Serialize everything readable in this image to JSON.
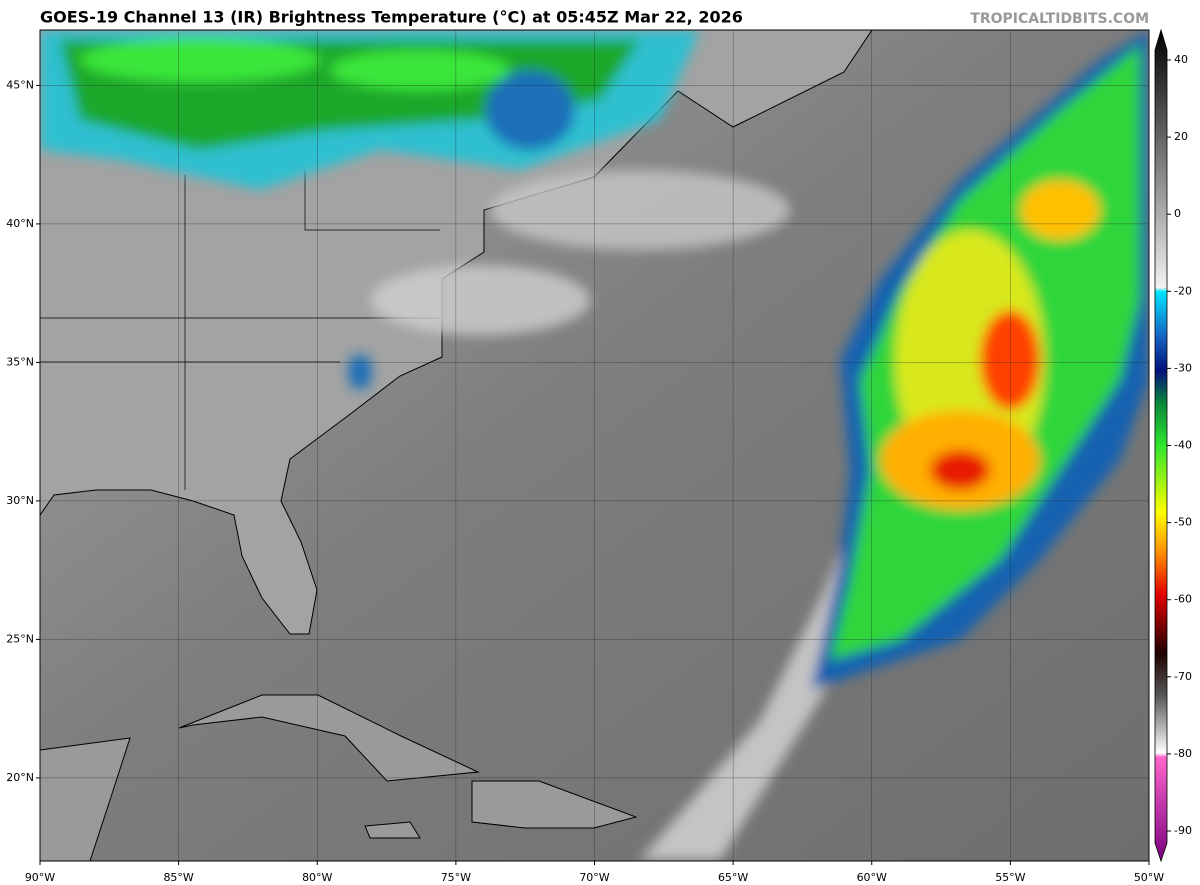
{
  "header": {
    "title": "GOES-19 Channel 13 (IR) Brightness Temperature (°C) at 05:45Z Mar 22, 2026",
    "credit": "TROPICALTIDBITS.COM"
  },
  "map": {
    "lonlim": [
      -90,
      -50
    ],
    "latlim": [
      17,
      47
    ],
    "lon_ticks": [
      {
        "value": -90,
        "label": "90°W"
      },
      {
        "value": -85,
        "label": "85°W"
      },
      {
        "value": -80,
        "label": "80°W"
      },
      {
        "value": -75,
        "label": "75°W"
      },
      {
        "value": -70,
        "label": "70°W"
      },
      {
        "value": -65,
        "label": "65°W"
      },
      {
        "value": -60,
        "label": "60°W"
      },
      {
        "value": -55,
        "label": "55°W"
      },
      {
        "value": -50,
        "label": "50°W"
      }
    ],
    "lat_ticks": [
      {
        "value": 20,
        "label": "20°N"
      },
      {
        "value": 25,
        "label": "25°N"
      },
      {
        "value": 30,
        "label": "30°N"
      },
      {
        "value": 35,
        "label": "35°N"
      },
      {
        "value": 40,
        "label": "40°N"
      },
      {
        "value": 45,
        "label": "45°N"
      }
    ]
  },
  "colorbar": {
    "ticks": [
      40,
      20,
      0,
      -20,
      -30,
      -40,
      -50,
      -60,
      -70,
      -80,
      -90
    ]
  }
}
